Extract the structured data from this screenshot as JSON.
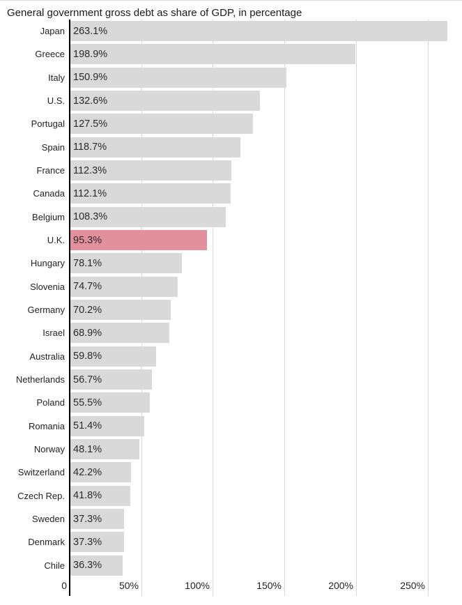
{
  "title": "General government gross debt as share of GDP, in percentage",
  "chart_data": {
    "type": "bar",
    "orientation": "horizontal",
    "title": "General government gross debt as share of GDP, in percentage",
    "xlabel": "",
    "ylabel": "",
    "xlim": [
      0,
      273
    ],
    "grid": true,
    "legend": "none",
    "value_suffix": "%",
    "categories": [
      "Japan",
      "Greece",
      "Italy",
      "U.S.",
      "Portugal",
      "Spain",
      "France",
      "Canada",
      "Belgium",
      "U.K.",
      "Hungary",
      "Slovenia",
      "Germany",
      "Israel",
      "Australia",
      "Netherlands",
      "Poland",
      "Romania",
      "Norway",
      "Switzerland",
      "Czech Rep.",
      "Sweden",
      "Denmark",
      "Chile"
    ],
    "values": [
      263.1,
      198.9,
      150.9,
      132.6,
      127.5,
      118.7,
      112.3,
      112.1,
      108.3,
      95.3,
      78.1,
      74.7,
      70.2,
      68.9,
      59.8,
      56.7,
      55.5,
      51.4,
      48.1,
      42.2,
      41.8,
      37.3,
      37.3,
      36.3
    ],
    "value_labels": [
      "263.1%",
      "198.9%",
      "150.9%",
      "132.6%",
      "127.5%",
      "118.7%",
      "112.3%",
      "112.1%",
      "108.3%",
      "95.3%",
      "78.1%",
      "74.7%",
      "70.2%",
      "68.9%",
      "59.8%",
      "56.7%",
      "55.5%",
      "51.4%",
      "48.1%",
      "42.2%",
      "41.8%",
      "37.3%",
      "37.3%",
      "36.3%"
    ],
    "highlight_category": "U.K.",
    "x_ticks": [
      {
        "label": "0",
        "value": 0
      },
      {
        "label": "50%",
        "value": 50
      },
      {
        "label": "100%",
        "value": 100
      },
      {
        "label": "150%",
        "value": 150
      },
      {
        "label": "200%",
        "value": 200
      },
      {
        "label": "250%",
        "value": 250
      }
    ],
    "colors": {
      "bar": "#d9d9d9",
      "highlight": "#e2909e",
      "axis": "#000000",
      "grid": "#d6d6d6",
      "value_text": "#2a2a2a",
      "label_text": "#222222"
    }
  }
}
